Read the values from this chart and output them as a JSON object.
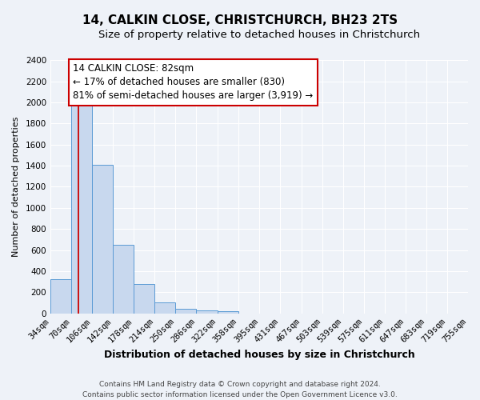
{
  "title": "14, CALKIN CLOSE, CHRISTCHURCH, BH23 2TS",
  "subtitle": "Size of property relative to detached houses in Christchurch",
  "xlabel": "Distribution of detached houses by size in Christchurch",
  "ylabel": "Number of detached properties",
  "bar_edges": [
    34,
    70,
    106,
    142,
    178,
    214,
    250,
    286,
    322,
    358,
    395,
    431,
    467,
    503,
    539,
    575,
    611,
    647,
    683,
    719,
    755
  ],
  "bar_heights": [
    325,
    1975,
    1410,
    650,
    275,
    100,
    45,
    30,
    20,
    0,
    0,
    0,
    0,
    0,
    0,
    0,
    0,
    0,
    0,
    0
  ],
  "bar_color": "#c8d8ee",
  "bar_edge_color": "#5b9bd5",
  "property_line_x": 82,
  "property_line_color": "#cc0000",
  "annotation_line1": "14 CALKIN CLOSE: 82sqm",
  "annotation_line2": "← 17% of detached houses are smaller (830)",
  "annotation_line3": "81% of semi-detached houses are larger (3,919) →",
  "annotation_box_color": "#ffffff",
  "annotation_box_edge": "#cc0000",
  "ylim": [
    0,
    2400
  ],
  "yticks": [
    0,
    200,
    400,
    600,
    800,
    1000,
    1200,
    1400,
    1600,
    1800,
    2000,
    2200,
    2400
  ],
  "bg_color": "#eef2f8",
  "grid_color": "#ffffff",
  "footer_line1": "Contains HM Land Registry data © Crown copyright and database right 2024.",
  "footer_line2": "Contains public sector information licensed under the Open Government Licence v3.0.",
  "title_fontsize": 11,
  "subtitle_fontsize": 9.5,
  "xlabel_fontsize": 9,
  "ylabel_fontsize": 8,
  "tick_fontsize": 7.5,
  "annotation_fontsize": 8.5,
  "footer_fontsize": 6.5
}
